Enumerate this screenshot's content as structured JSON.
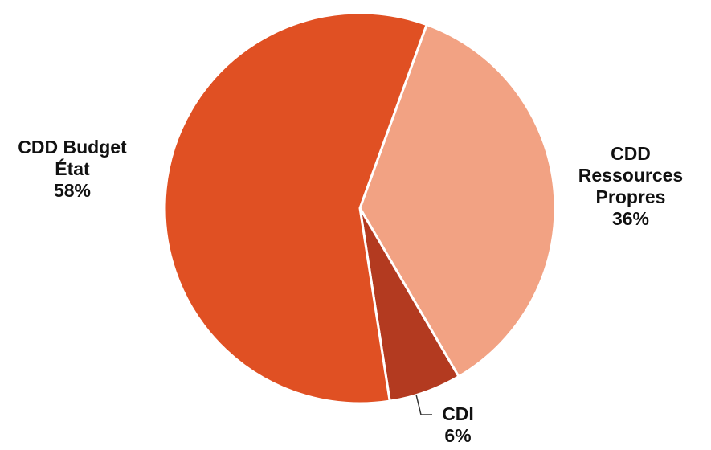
{
  "chart_data": {
    "type": "pie",
    "slices": [
      {
        "label": "CDD Ressources Propres",
        "value": 36,
        "value_label": "36%",
        "color": "#F2A283"
      },
      {
        "label": "CDI",
        "value": 6,
        "value_label": "6%",
        "color": "#B33A20"
      },
      {
        "label": "CDD Budget État",
        "value": 58,
        "value_label": "58%",
        "color": "#E05023"
      }
    ],
    "labels": {
      "budget": {
        "lines": [
          "CDD Budget",
          "État"
        ],
        "value": "58%"
      },
      "ressources": {
        "lines": [
          "CDD",
          "Ressources",
          "Propres"
        ],
        "value": "36%"
      },
      "cdi": {
        "lines": [
          "CDI"
        ],
        "value": "6%"
      }
    },
    "legend": "none",
    "start_angle_deg": 20,
    "direction": "clockwise"
  }
}
